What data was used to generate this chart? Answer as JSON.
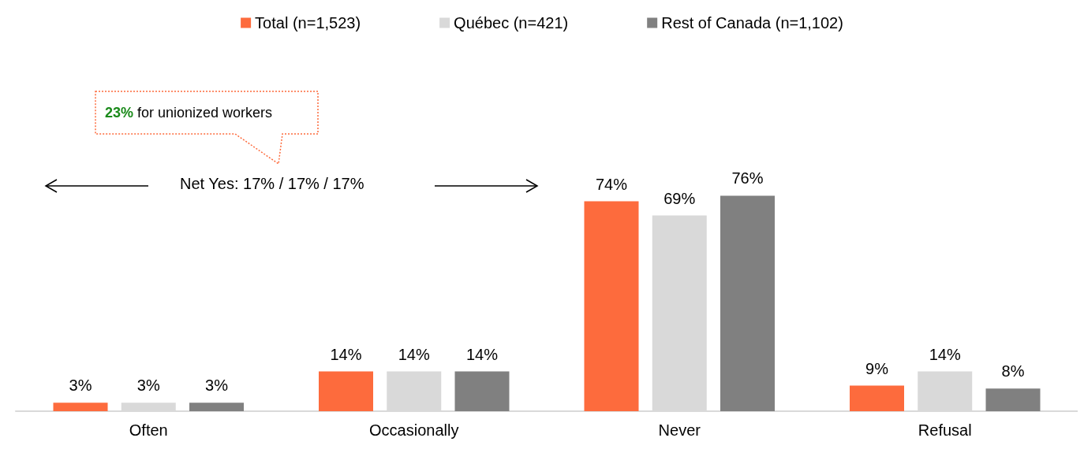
{
  "chart_data": {
    "type": "bar",
    "categories": [
      "Often",
      "Occasionally",
      "Never",
      "Refusal"
    ],
    "series": [
      {
        "name": "Total (n=1,523)",
        "color": "#fd6b3d",
        "values": [
          3,
          14,
          74,
          9
        ],
        "value_labels": [
          "3%",
          "14%",
          "74%",
          "9%"
        ]
      },
      {
        "name": "Québec (n=421)",
        "color": "#d9d9d9",
        "values": [
          3,
          14,
          69,
          14
        ],
        "value_labels": [
          "3%",
          "14%",
          "69%",
          "14%"
        ]
      },
      {
        "name": "Rest of Canada (n=1,102)",
        "color": "#808080",
        "values": [
          3,
          14,
          76,
          8
        ],
        "value_labels": [
          "3%",
          "14%",
          "76%",
          "8%"
        ]
      }
    ],
    "legend": "top",
    "annotations": [
      "Net Yes: 17% / 17% / 17%",
      "23% for unionized workers"
    ]
  }
}
